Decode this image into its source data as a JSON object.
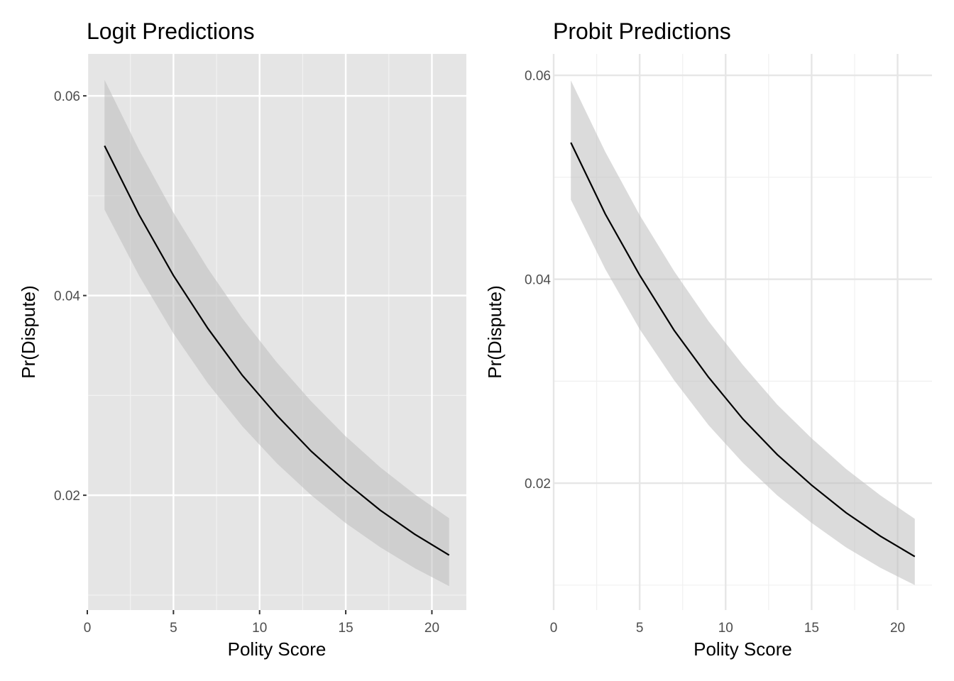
{
  "chart_data": [
    {
      "type": "line",
      "theme": "gray",
      "title": "Logit Predictions",
      "xlabel": "Polity Score",
      "ylabel": "Pr(Dispute)",
      "x": [
        1,
        3,
        5,
        7,
        9,
        11,
        13,
        15,
        17,
        19,
        21
      ],
      "series": [
        {
          "color": "#000000",
          "values": [
            0.055,
            0.0481,
            0.042,
            0.0367,
            0.032,
            0.028,
            0.0244,
            0.0213,
            0.0185,
            0.0161,
            0.014
          ]
        }
      ],
      "ribbon": {
        "color": "#bdbdbd",
        "upper": [
          0.0616,
          0.0546,
          0.0483,
          0.0427,
          0.0377,
          0.0333,
          0.0294,
          0.0259,
          0.0228,
          0.0201,
          0.0177
        ],
        "lower": [
          0.0486,
          0.042,
          0.0362,
          0.0312,
          0.0269,
          0.0232,
          0.02,
          0.0172,
          0.0148,
          0.0127,
          0.0109
        ]
      },
      "xlim": [
        0,
        22
      ],
      "ylim": [
        0.0085,
        0.0642
      ],
      "xticks": [
        0,
        5,
        10,
        15,
        20
      ],
      "yticks": [
        0.02,
        0.04,
        0.06
      ],
      "minor_xticks": [
        2.5,
        7.5,
        12.5,
        17.5
      ],
      "minor_yticks": [
        0.01,
        0.03,
        0.05
      ],
      "grid": true
    },
    {
      "type": "line",
      "theme": "minimal",
      "title": "Probit Predictions",
      "xlabel": "Polity Score",
      "ylabel": "Pr(Dispute)",
      "x": [
        1,
        3,
        5,
        7,
        9,
        11,
        13,
        15,
        17,
        19,
        21
      ],
      "series": [
        {
          "color": "#000000",
          "values": [
            0.0534,
            0.0464,
            0.0404,
            0.035,
            0.0304,
            0.0263,
            0.0228,
            0.0198,
            0.0171,
            0.0148,
            0.0128
          ]
        }
      ],
      "ribbon": {
        "color": "#bdbdbd",
        "upper": [
          0.0595,
          0.0525,
          0.0463,
          0.0408,
          0.0359,
          0.0316,
          0.0277,
          0.0244,
          0.0214,
          0.0188,
          0.0165
        ],
        "lower": [
          0.0478,
          0.041,
          0.0351,
          0.0301,
          0.0257,
          0.022,
          0.0188,
          0.0161,
          0.0137,
          0.0117,
          0.01
        ]
      },
      "xlim": [
        0,
        22
      ],
      "ylim": [
        0.00755,
        0.0621
      ],
      "xticks": [
        0,
        5,
        10,
        15,
        20
      ],
      "yticks": [
        0.02,
        0.04,
        0.06
      ],
      "minor_xticks": [
        2.5,
        7.5,
        12.5,
        17.5
      ],
      "minor_yticks": [
        0.01,
        0.03,
        0.05
      ],
      "grid": true
    }
  ]
}
